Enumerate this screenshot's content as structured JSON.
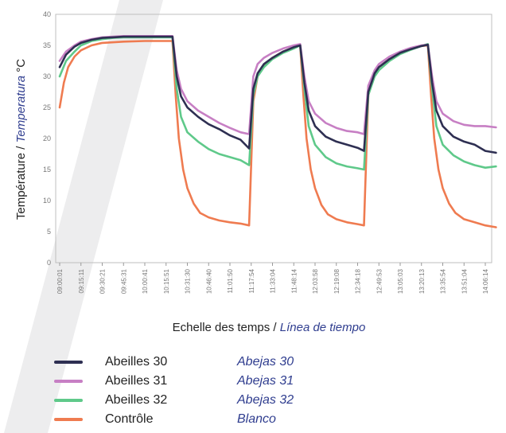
{
  "colors": {
    "abeilles30": "#2e2f52",
    "abeilles31": "#c77fc4",
    "abeilles32": "#5fc98a",
    "controle": "#ef7b50",
    "stripe": "#ededee"
  },
  "chart_data": {
    "type": "line",
    "ylabel_fr": "Température / ",
    "ylabel_es": "Temperatura",
    "ylabel_unit": " °C",
    "xlabel_fr": "Echelle des temps / ",
    "xlabel_es": "Línea de tiempo",
    "ylim": [
      0,
      40
    ],
    "yticks": [
      "0",
      "5",
      "10",
      "15",
      "20",
      "25",
      "30",
      "35",
      "40"
    ],
    "x_tick_labels": [
      "09:00:01",
      "09:15:11",
      "09:30:21",
      "09:45:31",
      "10:00:41",
      "10:15:51",
      "10:31:30",
      "10:46:40",
      "11:01:50",
      "11:17:54",
      "11:33:04",
      "11:48:14",
      "12:03:58",
      "12:19:08",
      "12:34:18",
      "12:49:53",
      "13:05:03",
      "13:20:13",
      "13:35:54",
      "13:51:04",
      "14:06:14"
    ],
    "grid": false,
    "series": [
      {
        "key": "abeilles30",
        "name_fr": "Abeilles 30",
        "name_es": "Abejas 30",
        "points": [
          [
            0,
            31.5
          ],
          [
            0.3,
            33.5
          ],
          [
            0.7,
            34.8
          ],
          [
            1,
            35.4
          ],
          [
            1.5,
            35.9
          ],
          [
            2,
            36.2
          ],
          [
            2.5,
            36.3
          ],
          [
            3,
            36.4
          ],
          [
            4,
            36.4
          ],
          [
            5,
            36.4
          ],
          [
            5.3,
            36.4
          ],
          [
            5.5,
            30
          ],
          [
            5.7,
            26.8
          ],
          [
            6,
            25
          ],
          [
            6.5,
            23.5
          ],
          [
            7,
            22.3
          ],
          [
            7.5,
            21.5
          ],
          [
            8,
            20.5
          ],
          [
            8.5,
            19.8
          ],
          [
            8.9,
            18.4
          ],
          [
            9.1,
            28
          ],
          [
            9.3,
            30.5
          ],
          [
            9.6,
            32
          ],
          [
            10,
            33
          ],
          [
            10.5,
            34
          ],
          [
            11,
            34.7
          ],
          [
            11.3,
            35
          ],
          [
            11.5,
            29
          ],
          [
            11.7,
            24.5
          ],
          [
            12,
            22
          ],
          [
            12.5,
            20.3
          ],
          [
            13,
            19.5
          ],
          [
            13.5,
            19
          ],
          [
            14,
            18.5
          ],
          [
            14.3,
            18
          ],
          [
            14.5,
            27.5
          ],
          [
            14.8,
            30.5
          ],
          [
            15,
            31.5
          ],
          [
            15.5,
            32.8
          ],
          [
            16,
            33.8
          ],
          [
            16.5,
            34.4
          ],
          [
            17,
            34.9
          ],
          [
            17.3,
            35.1
          ],
          [
            17.5,
            29
          ],
          [
            17.7,
            24.5
          ],
          [
            18,
            22
          ],
          [
            18.5,
            20.3
          ],
          [
            19,
            19.5
          ],
          [
            19.5,
            19
          ],
          [
            20,
            18
          ],
          [
            20.5,
            17.7
          ]
        ]
      },
      {
        "key": "abeilles31",
        "name_fr": "Abeilles 31",
        "name_es": "Abejas 31",
        "points": [
          [
            0,
            32.5
          ],
          [
            0.3,
            34
          ],
          [
            0.7,
            35
          ],
          [
            1,
            35.6
          ],
          [
            1.5,
            36
          ],
          [
            2,
            36.3
          ],
          [
            2.5,
            36.4
          ],
          [
            3,
            36.5
          ],
          [
            4,
            36.5
          ],
          [
            5,
            36.5
          ],
          [
            5.3,
            36.5
          ],
          [
            5.5,
            31
          ],
          [
            5.7,
            28
          ],
          [
            6,
            26
          ],
          [
            6.5,
            24.5
          ],
          [
            7,
            23.5
          ],
          [
            7.5,
            22.5
          ],
          [
            8,
            21.7
          ],
          [
            8.5,
            21
          ],
          [
            8.9,
            20.7
          ],
          [
            9.1,
            30
          ],
          [
            9.3,
            32
          ],
          [
            9.6,
            33
          ],
          [
            10,
            33.8
          ],
          [
            10.5,
            34.5
          ],
          [
            11,
            35
          ],
          [
            11.3,
            35.2
          ],
          [
            11.5,
            30
          ],
          [
            11.7,
            26
          ],
          [
            12,
            24
          ],
          [
            12.5,
            22.5
          ],
          [
            13,
            21.7
          ],
          [
            13.5,
            21.2
          ],
          [
            14,
            21
          ],
          [
            14.3,
            20.7
          ],
          [
            14.5,
            28.5
          ],
          [
            14.8,
            31
          ],
          [
            15,
            32
          ],
          [
            15.5,
            33.2
          ],
          [
            16,
            34
          ],
          [
            16.5,
            34.6
          ],
          [
            17,
            35
          ],
          [
            17.3,
            35.1
          ],
          [
            17.5,
            30
          ],
          [
            17.7,
            26
          ],
          [
            18,
            24
          ],
          [
            18.5,
            22.8
          ],
          [
            19,
            22.2
          ],
          [
            19.5,
            22
          ],
          [
            20,
            22
          ],
          [
            20.5,
            21.8
          ]
        ]
      },
      {
        "key": "abeilles32",
        "name_fr": "Abeilles 32",
        "name_es": "Abejas 32",
        "points": [
          [
            0,
            30
          ],
          [
            0.3,
            32.5
          ],
          [
            0.7,
            34
          ],
          [
            1,
            35
          ],
          [
            1.5,
            35.7
          ],
          [
            2,
            36
          ],
          [
            2.5,
            36.2
          ],
          [
            3,
            36.3
          ],
          [
            4,
            36.3
          ],
          [
            5,
            36.3
          ],
          [
            5.3,
            36.3
          ],
          [
            5.5,
            28
          ],
          [
            5.7,
            23.5
          ],
          [
            6,
            21
          ],
          [
            6.5,
            19.5
          ],
          [
            7,
            18.3
          ],
          [
            7.5,
            17.5
          ],
          [
            8,
            17
          ],
          [
            8.5,
            16.5
          ],
          [
            8.9,
            15.7
          ],
          [
            9.1,
            27
          ],
          [
            9.3,
            30
          ],
          [
            9.6,
            31.5
          ],
          [
            10,
            32.8
          ],
          [
            10.5,
            33.8
          ],
          [
            11,
            34.5
          ],
          [
            11.3,
            35
          ],
          [
            11.5,
            28
          ],
          [
            11.7,
            22
          ],
          [
            12,
            19
          ],
          [
            12.5,
            17
          ],
          [
            13,
            16
          ],
          [
            13.5,
            15.5
          ],
          [
            14,
            15.2
          ],
          [
            14.3,
            15
          ],
          [
            14.5,
            27
          ],
          [
            14.8,
            30
          ],
          [
            15,
            31
          ],
          [
            15.5,
            32.5
          ],
          [
            16,
            33.6
          ],
          [
            16.5,
            34.3
          ],
          [
            17,
            34.9
          ],
          [
            17.3,
            35.2
          ],
          [
            17.5,
            28
          ],
          [
            17.7,
            22
          ],
          [
            18,
            19
          ],
          [
            18.5,
            17.3
          ],
          [
            19,
            16.3
          ],
          [
            19.5,
            15.7
          ],
          [
            20,
            15.3
          ],
          [
            20.5,
            15.5
          ]
        ]
      },
      {
        "key": "controle",
        "name_fr": "Contrôle",
        "name_es": "Blanco",
        "points": [
          [
            0,
            25
          ],
          [
            0.2,
            29
          ],
          [
            0.4,
            31.5
          ],
          [
            0.7,
            33.2
          ],
          [
            1,
            34.2
          ],
          [
            1.5,
            35
          ],
          [
            2,
            35.4
          ],
          [
            3,
            35.6
          ],
          [
            4,
            35.7
          ],
          [
            5,
            35.7
          ],
          [
            5.3,
            35.7
          ],
          [
            5.45,
            27
          ],
          [
            5.6,
            20
          ],
          [
            5.8,
            15
          ],
          [
            6,
            12
          ],
          [
            6.3,
            9.5
          ],
          [
            6.6,
            8
          ],
          [
            7,
            7.3
          ],
          [
            7.5,
            6.8
          ],
          [
            8,
            6.5
          ],
          [
            8.5,
            6.3
          ],
          [
            8.9,
            6
          ],
          [
            9.1,
            26
          ],
          [
            9.3,
            30
          ],
          [
            9.6,
            31.8
          ],
          [
            10,
            33
          ],
          [
            10.5,
            34
          ],
          [
            11,
            34.7
          ],
          [
            11.3,
            35
          ],
          [
            11.45,
            27
          ],
          [
            11.6,
            20
          ],
          [
            11.8,
            15
          ],
          [
            12,
            12
          ],
          [
            12.3,
            9.3
          ],
          [
            12.6,
            7.8
          ],
          [
            13,
            7
          ],
          [
            13.5,
            6.5
          ],
          [
            14,
            6.2
          ],
          [
            14.3,
            6
          ],
          [
            14.5,
            27
          ],
          [
            14.8,
            30.5
          ],
          [
            15,
            31.5
          ],
          [
            15.5,
            32.8
          ],
          [
            16,
            33.8
          ],
          [
            16.5,
            34.4
          ],
          [
            17,
            34.9
          ],
          [
            17.3,
            35
          ],
          [
            17.45,
            27
          ],
          [
            17.6,
            20
          ],
          [
            17.8,
            15
          ],
          [
            18,
            12
          ],
          [
            18.3,
            9.5
          ],
          [
            18.6,
            8
          ],
          [
            19,
            7
          ],
          [
            19.5,
            6.5
          ],
          [
            20,
            6
          ],
          [
            20.5,
            5.7
          ]
        ]
      }
    ]
  }
}
